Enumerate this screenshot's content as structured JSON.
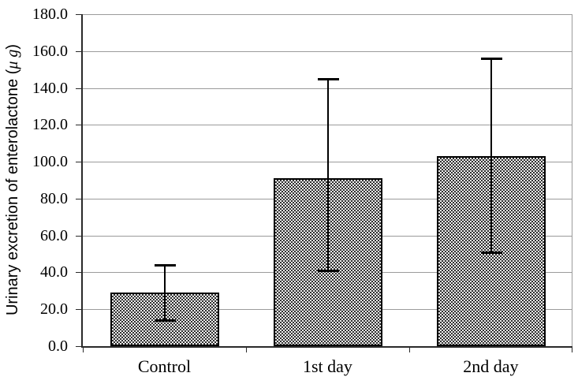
{
  "chart_data": {
    "type": "bar",
    "title": "",
    "categories": [
      "Control",
      "1st day",
      "2nd day"
    ],
    "values": [
      29,
      91,
      103
    ],
    "error_bars": {
      "low": [
        14,
        41,
        51
      ],
      "high": [
        44,
        145,
        156
      ]
    },
    "ylabel": "Urinary excretion of enterolactone (μ g)",
    "ylabel_parts": {
      "text": "Urinary excretion of enterolactone (",
      "unit_italic": "μ g",
      "close": ")"
    },
    "xlabel": "",
    "ylim": [
      0,
      180
    ],
    "ytick_step": 20,
    "ytick_labels": [
      "0.0",
      "20.0",
      "40.0",
      "60.0",
      "80.0",
      "100.0",
      "120.0",
      "140.0",
      "160.0",
      "180.0"
    ],
    "grid": true,
    "legend_position": "none",
    "bar_fill": "black-white-checkerboard-pattern",
    "colors": {
      "background": "#ffffff",
      "gridline": "#9b9b9b",
      "axis": "#2a2a2a",
      "bar_border": "#000000",
      "bar_pattern_dark": "#2f2f2f",
      "bar_pattern_light": "#ededed",
      "error_bar": "#000000",
      "text": "#000000"
    }
  }
}
